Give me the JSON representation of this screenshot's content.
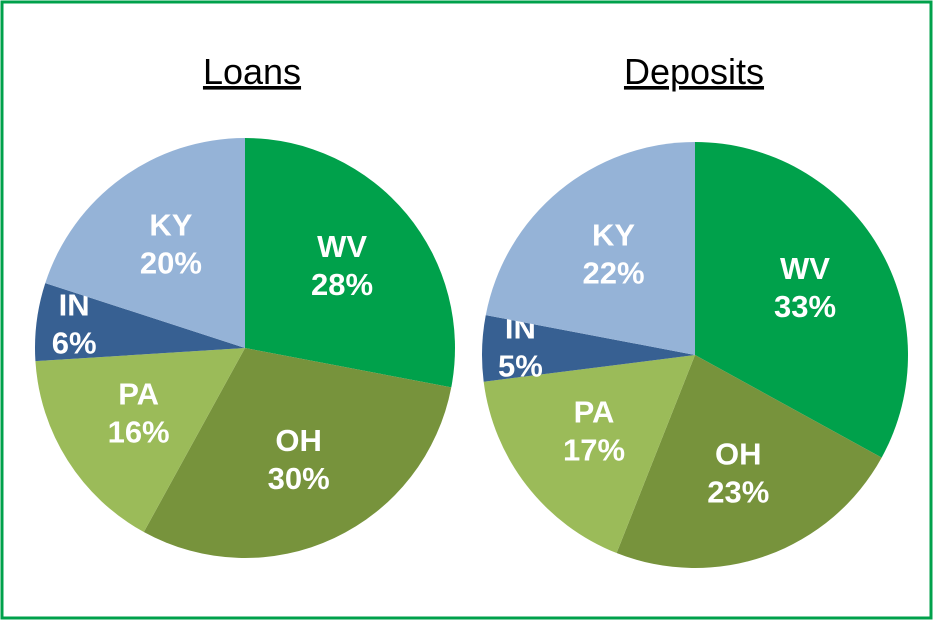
{
  "chart_data": [
    {
      "type": "pie",
      "title": "Loans",
      "categories": [
        "WV",
        "OH",
        "PA",
        "IN",
        "KY"
      ],
      "values": [
        28,
        30,
        16,
        6,
        20
      ],
      "value_labels": [
        "28%",
        "30%",
        "16%",
        "6%",
        "20%"
      ],
      "colors": [
        "#00a14b",
        "#77933c",
        "#9bbb59",
        "#376092",
        "#95b3d7"
      ]
    },
    {
      "type": "pie",
      "title": "Deposits",
      "categories": [
        "WV",
        "OH",
        "PA",
        "IN",
        "KY"
      ],
      "values": [
        33,
        23,
        17,
        5,
        22
      ],
      "value_labels": [
        "33%",
        "23%",
        "17%",
        "5%",
        "22%"
      ],
      "colors": [
        "#00a14b",
        "#77933c",
        "#9bbb59",
        "#376092",
        "#95b3d7"
      ]
    }
  ]
}
